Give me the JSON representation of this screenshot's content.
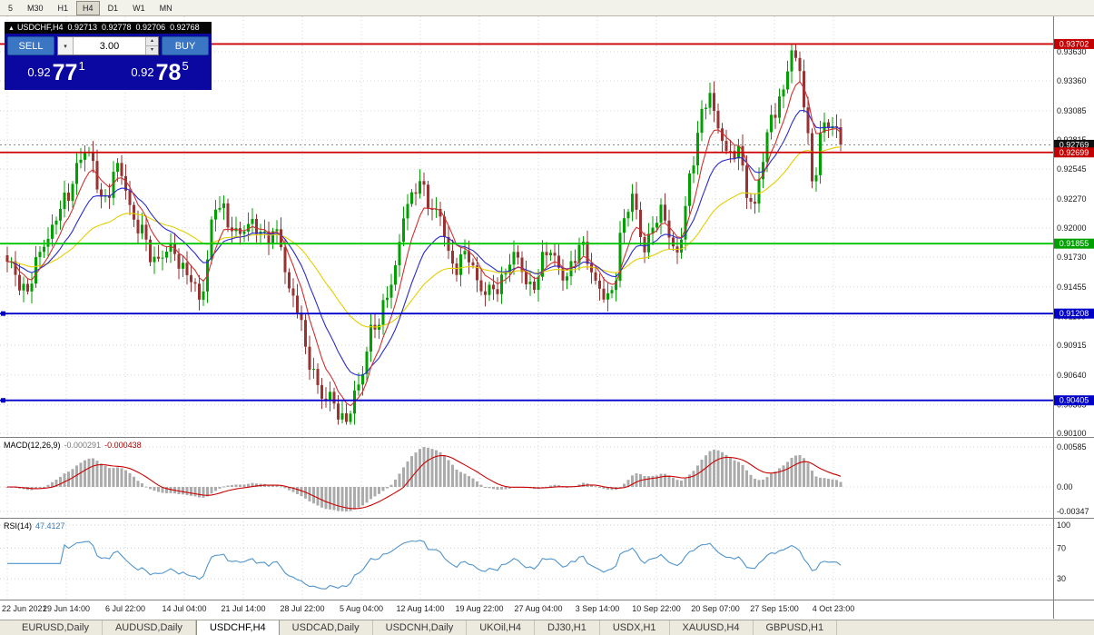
{
  "toolbar": {
    "timeframes": [
      {
        "label": "5",
        "active": false
      },
      {
        "label": "M30",
        "active": false
      },
      {
        "label": "H1",
        "active": false
      },
      {
        "label": "H4",
        "active": true
      },
      {
        "label": "D1",
        "active": false
      },
      {
        "label": "W1",
        "active": false
      },
      {
        "label": "MN",
        "active": false
      }
    ]
  },
  "symbol_info": {
    "collapse_arrow": "▲",
    "symbol": "USDCHF,H4",
    "open": "0.92713",
    "high": "0.92778",
    "low": "0.92706",
    "close": "0.92768"
  },
  "trade_panel": {
    "sell_label": "SELL",
    "buy_label": "BUY",
    "volume": "3.00",
    "dropdown_arrow": "▾",
    "spin_up": "▴",
    "spin_down": "▾",
    "sell_price": {
      "base": "0.92",
      "big": "77",
      "pip": "1"
    },
    "buy_price": {
      "base": "0.92",
      "big": "78",
      "pip": "5"
    }
  },
  "chart_data": {
    "type": "candlestick",
    "symbol": "USDCHF",
    "timeframe": "H4",
    "title": "USDCHF,H4",
    "candle_count": 205,
    "price_axis_ticks": [
      "0.93630",
      "0.93360",
      "0.93085",
      "0.92815",
      "0.92545",
      "0.92270",
      "0.92000",
      "0.91730",
      "0.91455",
      "0.91180",
      "0.90915",
      "0.90640",
      "0.90365",
      "0.90100"
    ],
    "price_badges": [
      {
        "value": "0.93702",
        "color": "#c40000"
      },
      {
        "value": "0.92769",
        "color": "#111111"
      },
      {
        "value": "0.92699",
        "color": "#c40000"
      },
      {
        "value": "0.91855",
        "color": "#00a000"
      },
      {
        "value": "0.91208",
        "color": "#0000c8"
      },
      {
        "value": "0.90405",
        "color": "#0000c8"
      }
    ],
    "horizontal_lines": [
      {
        "price": 0.93702,
        "color": "#cc0000",
        "handle": false
      },
      {
        "price": 0.92699,
        "color": "#cc0000",
        "handle": false
      },
      {
        "price": 0.91855,
        "color": "#00c400",
        "handle": false
      },
      {
        "price": 0.91208,
        "color": "#0000cc",
        "handle": true
      },
      {
        "price": 0.90405,
        "color": "#0000cc",
        "handle": true
      }
    ],
    "current_price": 0.92769,
    "time_labels": [
      "22 Jun 2021",
      "29 Jun 14:00",
      "6 Jul 22:00",
      "14 Jul 04:00",
      "21 Jul 14:00",
      "28 Jul 22:00",
      "5 Aug 04:00",
      "12 Aug 14:00",
      "19 Aug 22:00",
      "27 Aug 04:00",
      "3 Sep 14:00",
      "10 Sep 22:00",
      "20 Sep 07:00",
      "27 Sep 15:00",
      "4 Oct 23:00"
    ],
    "price_path_anchors": [
      [
        0,
        0.9162
      ],
      [
        4,
        0.9147
      ],
      [
        9,
        0.9178
      ],
      [
        14,
        0.9232
      ],
      [
        20,
        0.9268
      ],
      [
        24,
        0.9228
      ],
      [
        27,
        0.925
      ],
      [
        32,
        0.9208
      ],
      [
        36,
        0.9162
      ],
      [
        40,
        0.9188
      ],
      [
        44,
        0.9152
      ],
      [
        47,
        0.9135
      ],
      [
        51,
        0.9222
      ],
      [
        55,
        0.9195
      ],
      [
        59,
        0.9208
      ],
      [
        63,
        0.9185
      ],
      [
        66,
        0.9202
      ],
      [
        70,
        0.913
      ],
      [
        74,
        0.9078
      ],
      [
        78,
        0.9042
      ],
      [
        82,
        0.902
      ],
      [
        86,
        0.9058
      ],
      [
        90,
        0.9105
      ],
      [
        94,
        0.9155
      ],
      [
        98,
        0.9215
      ],
      [
        101,
        0.9247
      ],
      [
        105,
        0.9212
      ],
      [
        109,
        0.9165
      ],
      [
        112,
        0.9182
      ],
      [
        116,
        0.9136
      ],
      [
        120,
        0.9152
      ],
      [
        124,
        0.9168
      ],
      [
        128,
        0.915
      ],
      [
        132,
        0.9174
      ],
      [
        136,
        0.9158
      ],
      [
        140,
        0.9182
      ],
      [
        144,
        0.9148
      ],
      [
        148,
        0.9142
      ],
      [
        151,
        0.92
      ],
      [
        153,
        0.923
      ],
      [
        156,
        0.9188
      ],
      [
        160,
        0.9208
      ],
      [
        164,
        0.9182
      ],
      [
        167,
        0.924
      ],
      [
        170,
        0.93
      ],
      [
        172,
        0.9332
      ],
      [
        174,
        0.9295
      ],
      [
        177,
        0.9258
      ],
      [
        179,
        0.9272
      ],
      [
        181,
        0.9238
      ],
      [
        183,
        0.9225
      ],
      [
        185,
        0.9262
      ],
      [
        187,
        0.9295
      ],
      [
        189,
        0.932
      ],
      [
        192,
        0.9368
      ],
      [
        194,
        0.934
      ],
      [
        195,
        0.931
      ],
      [
        197,
        0.9242
      ],
      [
        200,
        0.9305
      ],
      [
        202,
        0.9292
      ],
      [
        204,
        0.92768
      ]
    ],
    "bull_color": "#00a000",
    "bear_color": "#993333",
    "moving_averages": [
      {
        "period": 40,
        "color": "#e3cf00"
      },
      {
        "period": 16,
        "color": "#2a2ad0"
      },
      {
        "period": 7,
        "color": "#d03030"
      }
    ],
    "indicators": {
      "macd": {
        "label": "MACD(12,26,9)",
        "values": [
          "-0.000291",
          "-0.000438"
        ],
        "axis_ticks": [
          "0.00585",
          "0.00",
          "-0.00347"
        ],
        "histogram_color": "#ababab",
        "signal_color": "#cc0000"
      },
      "rsi": {
        "label": "RSI(14)",
        "value": "47.4127",
        "axis_ticks": [
          "100",
          "70",
          "30"
        ],
        "levels": [
          100,
          70,
          30
        ],
        "line_color": "#4f94cd"
      }
    }
  },
  "bottom_tabs": {
    "tabs": [
      {
        "label": "EURUSD,Daily",
        "active": false
      },
      {
        "label": "AUDUSD,Daily",
        "active": false
      },
      {
        "label": "USDCHF,H4",
        "active": true
      },
      {
        "label": "USDCAD,Daily",
        "active": false
      },
      {
        "label": "USDCNH,Daily",
        "active": false
      },
      {
        "label": "UKOil,H4",
        "active": false
      },
      {
        "label": "DJ30,H1",
        "active": false
      },
      {
        "label": "USDX,H1",
        "active": false
      },
      {
        "label": "XAUUSD,H4",
        "active": false
      },
      {
        "label": "GBPUSD,H1",
        "active": false
      }
    ]
  }
}
